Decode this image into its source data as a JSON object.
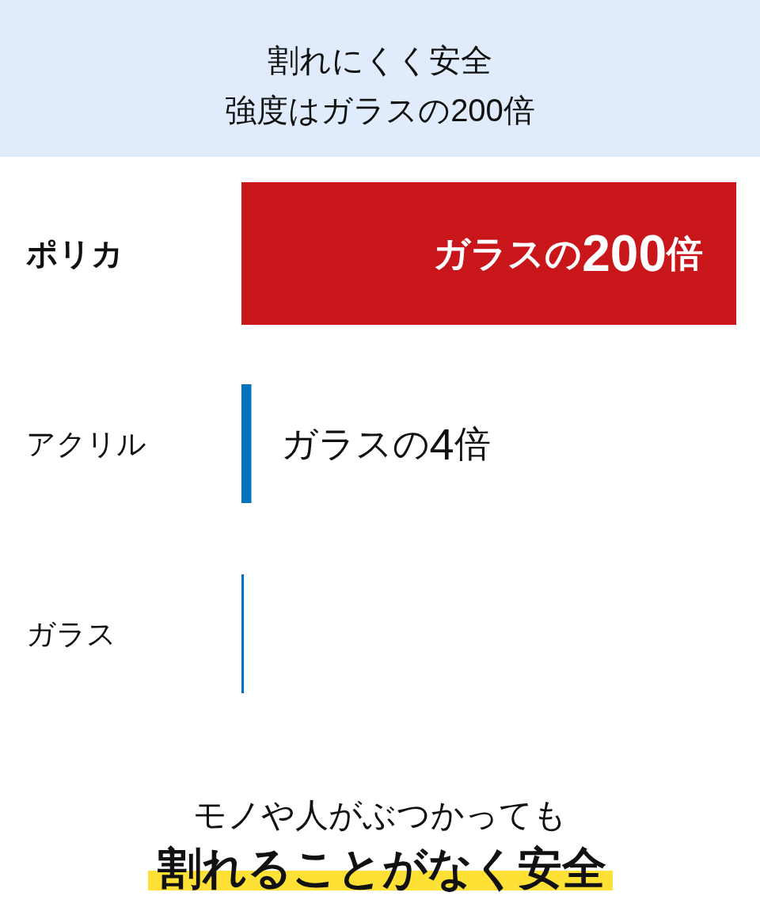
{
  "chart_data": {
    "type": "bar",
    "orientation": "horizontal",
    "tick_labels": "y",
    "title": "割れにくく安全",
    "subtitle": "強度はガラスの200倍",
    "categories": [
      "ポリカ",
      "アクリル",
      "ガラス"
    ],
    "values": [
      200,
      4,
      1
    ],
    "colors": [
      "#c8161b",
      "#0075bc",
      "#0075bc"
    ],
    "value_labels": [
      "ガラスの200倍",
      "ガラスの4倍",
      null
    ],
    "annotations": [
      "モノや人がぶつかっても",
      "割れることがなく安全"
    ]
  }
}
